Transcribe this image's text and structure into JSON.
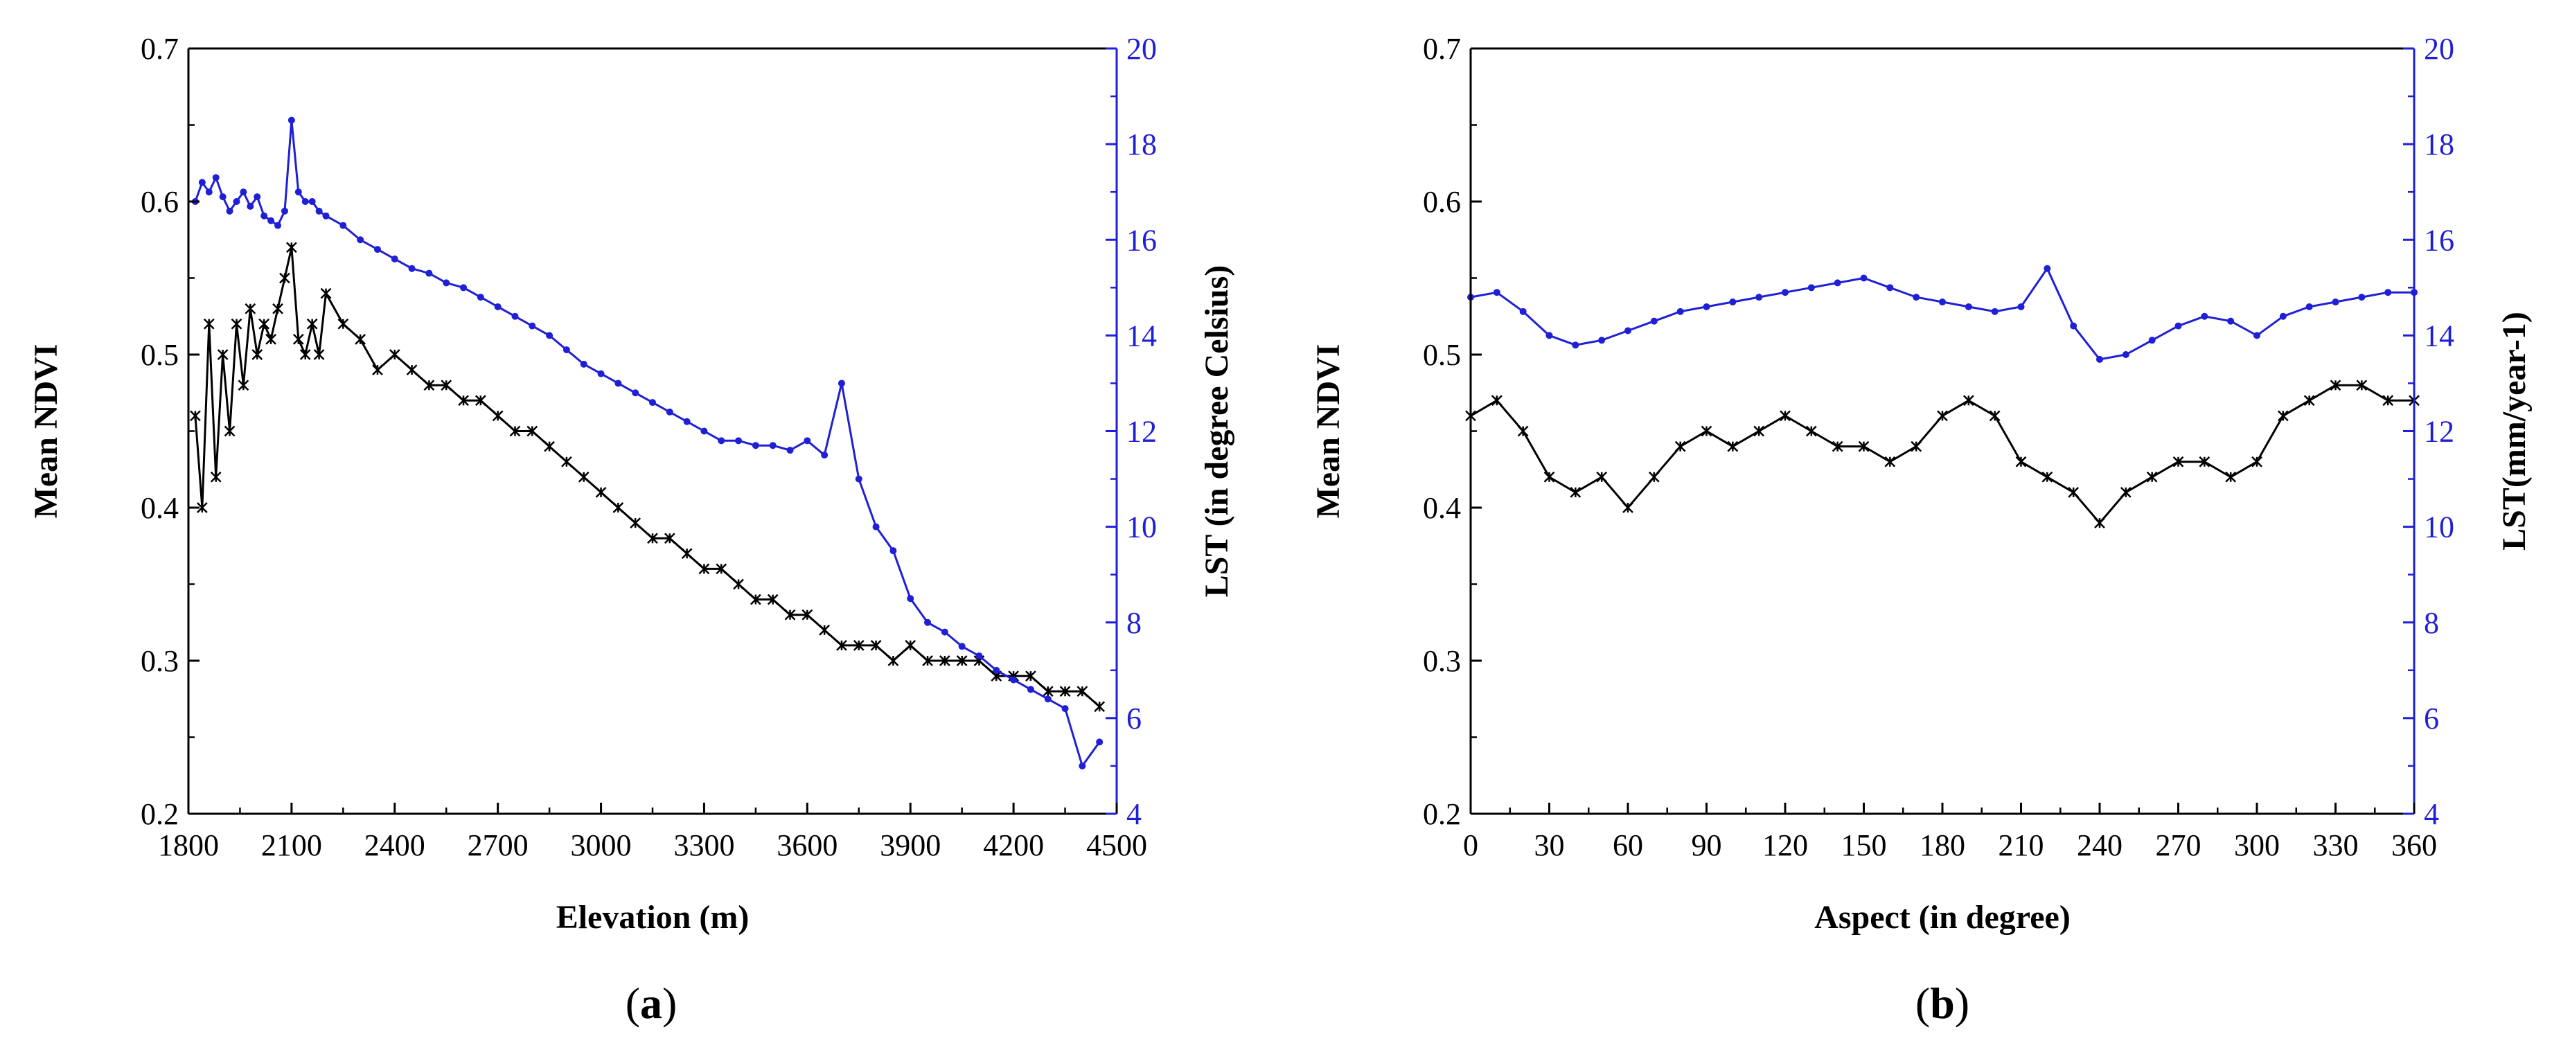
{
  "chart_data": [
    {
      "panel_label_prefix": "(",
      "panel_label_letter": "a",
      "panel_label_suffix": ")",
      "type": "line",
      "xlabel": "Elevation (m)",
      "ylabel_left": "Mean NDVI",
      "ylabel_right": "LST (in degree Celsius)",
      "xlim": [
        1800,
        4500
      ],
      "ylim_left": [
        0.2,
        0.7
      ],
      "ylim_right": [
        4,
        20
      ],
      "x_ticks": [
        1800,
        2100,
        2400,
        2700,
        3000,
        3300,
        3600,
        3900,
        4200,
        4500
      ],
      "y_ticks_left": [
        0.2,
        0.3,
        0.4,
        0.5,
        0.6,
        0.7
      ],
      "y_ticks_right": [
        4,
        6,
        8,
        10,
        12,
        14,
        16,
        18,
        20
      ],
      "grid": false,
      "colors": {
        "ndvi": "#000000",
        "lst": "#1f1fd6"
      },
      "series": [
        {
          "axis": "left",
          "color": "#000000",
          "marker": "asterisk",
          "x": [
            1820,
            1840,
            1860,
            1880,
            1900,
            1920,
            1940,
            1960,
            1980,
            2000,
            2020,
            2040,
            2060,
            2080,
            2100,
            2120,
            2140,
            2160,
            2180,
            2200,
            2250,
            2300,
            2350,
            2400,
            2450,
            2500,
            2550,
            2600,
            2650,
            2700,
            2750,
            2800,
            2850,
            2900,
            2950,
            3000,
            3050,
            3100,
            3150,
            3200,
            3250,
            3300,
            3350,
            3400,
            3450,
            3500,
            3550,
            3600,
            3650,
            3700,
            3750,
            3800,
            3850,
            3900,
            3950,
            4000,
            4050,
            4100,
            4150,
            4200,
            4250,
            4300,
            4350,
            4400,
            4450
          ],
          "y": [
            0.46,
            0.4,
            0.52,
            0.42,
            0.5,
            0.45,
            0.52,
            0.48,
            0.53,
            0.5,
            0.52,
            0.51,
            0.53,
            0.55,
            0.57,
            0.51,
            0.5,
            0.52,
            0.5,
            0.54,
            0.52,
            0.51,
            0.49,
            0.5,
            0.49,
            0.48,
            0.48,
            0.47,
            0.47,
            0.46,
            0.45,
            0.45,
            0.44,
            0.43,
            0.42,
            0.41,
            0.4,
            0.39,
            0.38,
            0.38,
            0.37,
            0.36,
            0.36,
            0.35,
            0.34,
            0.34,
            0.33,
            0.33,
            0.32,
            0.31,
            0.31,
            0.31,
            0.3,
            0.31,
            0.3,
            0.3,
            0.3,
            0.3,
            0.29,
            0.29,
            0.29,
            0.28,
            0.28,
            0.28,
            0.27
          ]
        },
        {
          "axis": "right",
          "color": "#1f1fd6",
          "marker": "dot",
          "x": [
            1820,
            1840,
            1860,
            1880,
            1900,
            1920,
            1940,
            1960,
            1980,
            2000,
            2020,
            2040,
            2060,
            2080,
            2100,
            2120,
            2140,
            2160,
            2180,
            2200,
            2250,
            2300,
            2350,
            2400,
            2450,
            2500,
            2550,
            2600,
            2650,
            2700,
            2750,
            2800,
            2850,
            2900,
            2950,
            3000,
            3050,
            3100,
            3150,
            3200,
            3250,
            3300,
            3350,
            3400,
            3450,
            3500,
            3550,
            3600,
            3650,
            3700,
            3750,
            3800,
            3850,
            3900,
            3950,
            4000,
            4050,
            4100,
            4150,
            4200,
            4250,
            4300,
            4350,
            4400,
            4450
          ],
          "y": [
            16.8,
            17.2,
            17.0,
            17.3,
            16.9,
            16.6,
            16.8,
            17.0,
            16.7,
            16.9,
            16.5,
            16.4,
            16.3,
            16.6,
            18.5,
            17.0,
            16.8,
            16.8,
            16.6,
            16.5,
            16.3,
            16.0,
            15.8,
            15.6,
            15.4,
            15.3,
            15.1,
            15.0,
            14.8,
            14.6,
            14.4,
            14.2,
            14.0,
            13.7,
            13.4,
            13.2,
            13.0,
            12.8,
            12.6,
            12.4,
            12.2,
            12.0,
            11.8,
            11.8,
            11.7,
            11.7,
            11.6,
            11.8,
            11.5,
            13.0,
            11.0,
            10.0,
            9.5,
            8.5,
            8.0,
            7.8,
            7.5,
            7.3,
            7.0,
            6.8,
            6.6,
            6.4,
            6.2,
            5.0,
            5.5
          ]
        }
      ]
    },
    {
      "panel_label_prefix": "(",
      "panel_label_letter": "b",
      "panel_label_suffix": ")",
      "type": "line",
      "xlabel": "Aspect (in degree)",
      "ylabel_left": "Mean NDVI",
      "ylabel_right": "LST(mm/year-1)",
      "xlim": [
        0,
        360
      ],
      "ylim_left": [
        0.2,
        0.7
      ],
      "ylim_right": [
        4,
        20
      ],
      "x_ticks": [
        0,
        30,
        60,
        90,
        120,
        150,
        180,
        210,
        240,
        270,
        300,
        330,
        360
      ],
      "y_ticks_left": [
        0.2,
        0.3,
        0.4,
        0.5,
        0.6,
        0.7
      ],
      "y_ticks_right": [
        4,
        6,
        8,
        10,
        12,
        14,
        16,
        18,
        20
      ],
      "grid": false,
      "colors": {
        "ndvi": "#000000",
        "lst": "#1f1fd6"
      },
      "series": [
        {
          "axis": "left",
          "color": "#000000",
          "marker": "asterisk",
          "x": [
            0,
            10,
            20,
            30,
            40,
            50,
            60,
            70,
            80,
            90,
            100,
            110,
            120,
            130,
            140,
            150,
            160,
            170,
            180,
            190,
            200,
            210,
            220,
            230,
            240,
            250,
            260,
            270,
            280,
            290,
            300,
            310,
            320,
            330,
            340,
            350,
            360
          ],
          "y": [
            0.46,
            0.47,
            0.45,
            0.42,
            0.41,
            0.42,
            0.4,
            0.42,
            0.44,
            0.45,
            0.44,
            0.45,
            0.46,
            0.45,
            0.44,
            0.44,
            0.43,
            0.44,
            0.46,
            0.47,
            0.46,
            0.43,
            0.42,
            0.41,
            0.39,
            0.41,
            0.42,
            0.43,
            0.43,
            0.42,
            0.43,
            0.46,
            0.47,
            0.48,
            0.48,
            0.47,
            0.47
          ]
        },
        {
          "axis": "right",
          "color": "#1f1fd6",
          "marker": "dot",
          "x": [
            0,
            10,
            20,
            30,
            40,
            50,
            60,
            70,
            80,
            90,
            100,
            110,
            120,
            130,
            140,
            150,
            160,
            170,
            180,
            190,
            200,
            210,
            220,
            230,
            240,
            250,
            260,
            270,
            280,
            290,
            300,
            310,
            320,
            330,
            340,
            350,
            360
          ],
          "y": [
            14.8,
            14.9,
            14.5,
            14.0,
            13.8,
            13.9,
            14.1,
            14.3,
            14.5,
            14.6,
            14.7,
            14.8,
            14.9,
            15.0,
            15.1,
            15.2,
            15.0,
            14.8,
            14.7,
            14.6,
            14.5,
            14.6,
            15.4,
            14.2,
            13.5,
            13.6,
            13.9,
            14.2,
            14.4,
            14.3,
            14.0,
            14.4,
            14.6,
            14.7,
            14.8,
            14.9,
            14.9
          ]
        }
      ]
    }
  ]
}
